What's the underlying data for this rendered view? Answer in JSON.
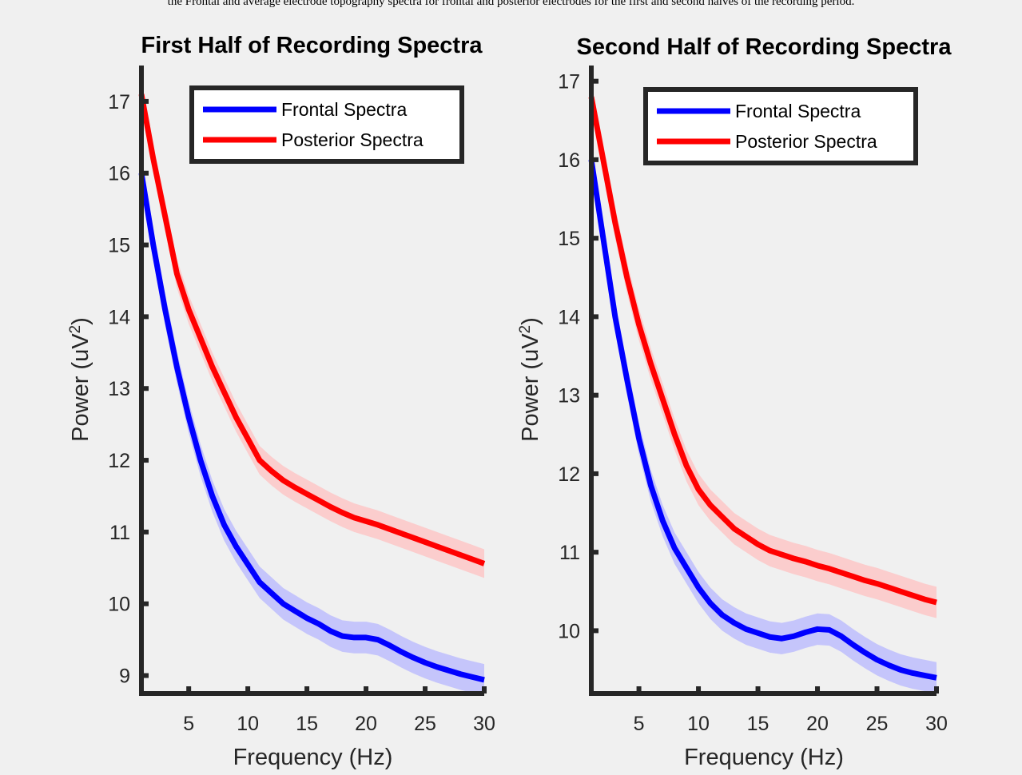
{
  "figure_caption": "the Frontal and average electrode topography spectra for frontal and posterior electrodes for the first and second halves of the recording period.",
  "chart_data": [
    {
      "type": "line",
      "title": "First Half of Recording Spectra",
      "xlabel": "Frequency (Hz)",
      "ylabel": "Power (uV",
      "ylabel_sup": "2",
      "ylabel_close": ")",
      "xlim": [
        1,
        30
      ],
      "ylim": [
        8.75,
        17.5
      ],
      "xticks": [
        5,
        10,
        15,
        20,
        25,
        30
      ],
      "yticks": [
        9,
        10,
        11,
        12,
        13,
        14,
        15,
        16,
        17
      ],
      "grid": false,
      "legend_position": "top-right",
      "series": [
        {
          "name": "Frontal Spectra",
          "color": "#0000ff",
          "band_color": "#b7b7ff",
          "band_halfwidth": 0.22,
          "x": [
            1,
            2,
            3,
            4,
            5,
            6,
            7,
            8,
            9,
            10,
            11,
            12,
            13,
            14,
            15,
            16,
            17,
            18,
            19,
            20,
            21,
            22,
            23,
            24,
            25,
            26,
            27,
            28,
            29,
            30
          ],
          "y": [
            16.0,
            15.0,
            14.1,
            13.3,
            12.6,
            12.0,
            11.5,
            11.1,
            10.8,
            10.55,
            10.3,
            10.15,
            10.0,
            9.9,
            9.8,
            9.72,
            9.62,
            9.55,
            9.53,
            9.53,
            9.5,
            9.42,
            9.33,
            9.25,
            9.18,
            9.12,
            9.07,
            9.02,
            8.98,
            8.94
          ]
        },
        {
          "name": "Posterior Spectra",
          "color": "#ff0000",
          "band_color": "#ffc2c2",
          "band_halfwidth": 0.2,
          "x": [
            1,
            2,
            3,
            4,
            5,
            6,
            7,
            8,
            9,
            10,
            11,
            12,
            13,
            14,
            15,
            16,
            17,
            18,
            19,
            20,
            21,
            22,
            23,
            24,
            25,
            26,
            27,
            28,
            29,
            30
          ],
          "y": [
            17.1,
            16.2,
            15.4,
            14.6,
            14.1,
            13.7,
            13.3,
            12.95,
            12.6,
            12.3,
            12.0,
            11.85,
            11.72,
            11.62,
            11.53,
            11.44,
            11.35,
            11.27,
            11.2,
            11.15,
            11.1,
            11.04,
            10.98,
            10.92,
            10.86,
            10.8,
            10.74,
            10.68,
            10.62,
            10.56
          ]
        }
      ]
    },
    {
      "type": "line",
      "title": "Second Half of Recording Spectra",
      "xlabel": "Frequency (Hz)",
      "ylabel": "Power (uV",
      "ylabel_sup": "2",
      "ylabel_close": ")",
      "xlim": [
        1,
        30
      ],
      "ylim": [
        9.2,
        17.2
      ],
      "xticks": [
        5,
        10,
        15,
        20,
        25,
        30
      ],
      "yticks": [
        10,
        11,
        12,
        13,
        14,
        15,
        16,
        17
      ],
      "grid": false,
      "legend_position": "top-right",
      "series": [
        {
          "name": "Frontal Spectra",
          "color": "#0000ff",
          "band_color": "#b7b7ff",
          "band_halfwidth": 0.2,
          "x": [
            1,
            2,
            3,
            4,
            5,
            6,
            7,
            8,
            9,
            10,
            11,
            12,
            13,
            14,
            15,
            16,
            17,
            18,
            19,
            20,
            21,
            22,
            23,
            24,
            25,
            26,
            27,
            28,
            29,
            30
          ],
          "y": [
            16.0,
            15.0,
            14.0,
            13.2,
            12.45,
            11.85,
            11.4,
            11.05,
            10.8,
            10.55,
            10.35,
            10.2,
            10.1,
            10.02,
            9.97,
            9.92,
            9.9,
            9.93,
            9.98,
            10.02,
            10.01,
            9.93,
            9.82,
            9.72,
            9.63,
            9.56,
            9.5,
            9.46,
            9.43,
            9.4
          ]
        },
        {
          "name": "Posterior Spectra",
          "color": "#ff0000",
          "band_color": "#ffc2c2",
          "band_halfwidth": 0.2,
          "x": [
            1,
            2,
            3,
            4,
            5,
            6,
            7,
            8,
            9,
            10,
            11,
            12,
            13,
            14,
            15,
            16,
            17,
            18,
            19,
            20,
            21,
            22,
            23,
            24,
            25,
            26,
            27,
            28,
            29,
            30
          ],
          "y": [
            16.8,
            16.0,
            15.2,
            14.5,
            13.9,
            13.4,
            12.95,
            12.5,
            12.1,
            11.8,
            11.6,
            11.45,
            11.3,
            11.2,
            11.1,
            11.02,
            10.97,
            10.92,
            10.88,
            10.83,
            10.79,
            10.74,
            10.69,
            10.64,
            10.6,
            10.55,
            10.5,
            10.45,
            10.4,
            10.36
          ]
        }
      ]
    }
  ]
}
